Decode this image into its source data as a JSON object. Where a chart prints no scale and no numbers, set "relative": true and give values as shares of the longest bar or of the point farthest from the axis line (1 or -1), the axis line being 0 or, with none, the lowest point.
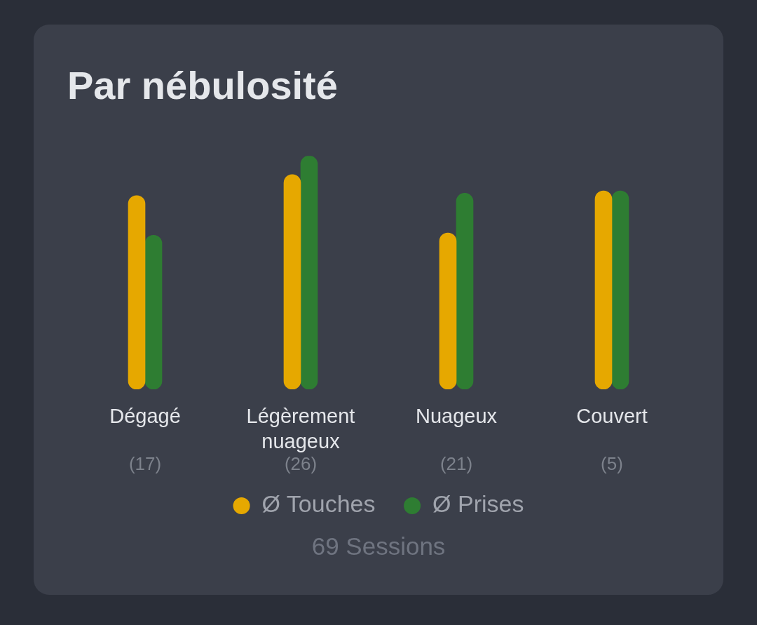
{
  "chart_data": {
    "type": "bar",
    "title": "Par nébulosité",
    "categories": [
      "Dégagé",
      "Légèrement nuageux",
      "Nuageux",
      "Couvert"
    ],
    "series": [
      {
        "name": "Ø Touches",
        "color": "#e6a800",
        "values": [
          0.83,
          0.92,
          0.67,
          0.85
        ]
      },
      {
        "name": "Ø Prises",
        "color": "#2e7d32",
        "values": [
          0.66,
          1,
          0.84,
          0.85
        ]
      }
    ],
    "relative": true,
    "legend": "bottom",
    "annotations": [
      "(17)",
      "(26)",
      "(21)",
      "(5)",
      "69 Sessions"
    ]
  }
}
